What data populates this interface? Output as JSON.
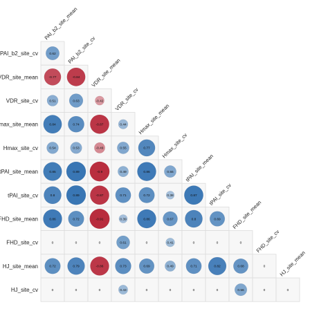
{
  "chart_data": {
    "type": "heatmap",
    "variables": [
      "PAI_b2_site_cv",
      "PAI_b2_site_mean",
      "VDR_site_mean",
      "VDR_site_cv",
      "Hmax_site_mean",
      "Hmax_site_cv",
      "tPAI_site_mean",
      "tPAI_site_cv",
      "FHD_site_mean",
      "FHD_site_cv",
      "HJ_site_mean",
      "HJ_site_cv"
    ],
    "row_labels": [
      "PAI_b2_site_cv",
      "VDR_site_mean",
      "VDR_site_cv",
      "Hmax_site_mean",
      "Hmax_site_cv",
      "tPAI_site_mean",
      "tPAI_site_cv",
      "FHD_site_mean",
      "FHD_site_cv",
      "HJ_site_mean",
      "HJ_site_cv"
    ],
    "column_labels": [
      "PAI_b2_site_mean",
      "PAI_b2_site_cv",
      "VDR_site_mean",
      "VDR_site_cv",
      "Hmax_site_mean",
      "Hmax_site_cv",
      "tPAI_site_mean",
      "tPAI_site_cv",
      "FHD_site_mean",
      "FHD_site_cv",
      "HJ_site_mean"
    ],
    "matrix": [
      [
        0.62
      ],
      [
        -0.77,
        -0.84
      ],
      [
        0.51,
        0.63,
        -0.42
      ],
      [
        0.84,
        0.74,
        -0.87,
        0.44
      ],
      [
        0.54,
        0.53,
        -0.49,
        0.55,
        0.77
      ],
      [
        0.85,
        0.89,
        -0.9,
        0.49,
        0.86,
        0.55
      ],
      [
        0.8,
        0.89,
        -0.87,
        0.71,
        0.72,
        0.38,
        0.87
      ],
      [
        0.86,
        0.72,
        -0.91,
        0.39,
        0.86,
        0.67,
        0.8,
        0.69
      ],
      [
        0,
        0,
        0,
        0.61,
        0,
        0.41,
        0,
        0,
        0
      ],
      [
        0.72,
        0.79,
        -0.86,
        0.73,
        0.69,
        0.49,
        0.71,
        0.82,
        0.68,
        0
      ],
      [
        0,
        0,
        0,
        0.43,
        0,
        0,
        0,
        0,
        0.56,
        0,
        0
      ]
    ],
    "value_range": [
      -1,
      1
    ],
    "colors": {
      "negative": "#b2182b",
      "neutral": "#f7f7f7",
      "positive": "#2166ac"
    },
    "layout": "lower triangle",
    "shape": "circle sized by absolute value",
    "label_rotation": "45 degrees"
  }
}
